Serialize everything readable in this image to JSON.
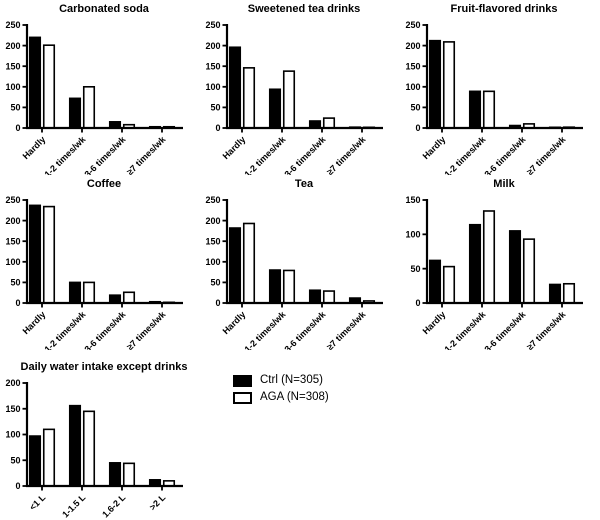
{
  "figure": {
    "background": "#ffffff",
    "axis_color": "#000000"
  },
  "legend": {
    "entries": [
      {
        "label": "Ctrl (N=305)",
        "fill": "#000000"
      },
      {
        "label": "AGA (N=308)",
        "fill": "#ffffff"
      }
    ]
  },
  "chart_data": [
    {
      "id": "carbonated-soda",
      "type": "bar",
      "title": "Carbonated soda",
      "categories": [
        "Hardly",
        "1-2 times/wk",
        "3-6 times/wk",
        "≥7 times/wk"
      ],
      "series": [
        {
          "name": "Ctrl (N=305)",
          "fill": "#000000",
          "values": [
            220,
            72,
            15,
            3
          ]
        },
        {
          "name": "AGA (N=308)",
          "fill": "#ffffff",
          "values": [
            201,
            100,
            8,
            3
          ]
        }
      ],
      "ylim": [
        0,
        250
      ],
      "yticks": [
        0,
        50,
        100,
        150,
        200,
        250
      ],
      "grid": false
    },
    {
      "id": "sweetened-tea-drinks",
      "type": "bar",
      "title": "Sweetened tea drinks",
      "categories": [
        "Hardly",
        "1-2 times/wk",
        "3-6 times/wk",
        "≥7 times/wk"
      ],
      "series": [
        {
          "name": "Ctrl (N=305)",
          "fill": "#000000",
          "values": [
            196,
            94,
            17,
            2
          ]
        },
        {
          "name": "AGA (N=308)",
          "fill": "#ffffff",
          "values": [
            146,
            138,
            24,
            1
          ]
        }
      ],
      "ylim": [
        0,
        250
      ],
      "yticks": [
        0,
        50,
        100,
        150,
        200,
        250
      ],
      "grid": false
    },
    {
      "id": "fruit-flavored-drinks",
      "type": "bar",
      "title": "Fruit-flavored drinks",
      "categories": [
        "Hardly",
        "1-2 times/wk",
        "3-6 times/wk",
        "≥7 times/wk"
      ],
      "series": [
        {
          "name": "Ctrl (N=305)",
          "fill": "#000000",
          "values": [
            212,
            89,
            6,
            1
          ]
        },
        {
          "name": "AGA (N=308)",
          "fill": "#ffffff",
          "values": [
            209,
            89,
            10,
            2
          ]
        }
      ],
      "ylim": [
        0,
        250
      ],
      "yticks": [
        0,
        50,
        100,
        150,
        200,
        250
      ],
      "grid": false
    },
    {
      "id": "coffee",
      "type": "bar",
      "title": "Coffee",
      "categories": [
        "Hardly",
        "1-2 times/wk",
        "3-6 times/wk",
        "≥7 times/wk"
      ],
      "series": [
        {
          "name": "Ctrl (N=305)",
          "fill": "#000000",
          "values": [
            237,
            50,
            19,
            3
          ]
        },
        {
          "name": "AGA (N=308)",
          "fill": "#ffffff",
          "values": [
            234,
            50,
            26,
            1
          ]
        }
      ],
      "ylim": [
        0,
        250
      ],
      "yticks": [
        0,
        50,
        100,
        150,
        200,
        250
      ],
      "grid": false
    },
    {
      "id": "tea",
      "type": "bar",
      "title": "Tea",
      "categories": [
        "Hardly",
        "1-2 times/wk",
        "3-6 times/wk",
        "≥7 times/wk"
      ],
      "series": [
        {
          "name": "Ctrl (N=305)",
          "fill": "#000000",
          "values": [
            182,
            80,
            31,
            12
          ]
        },
        {
          "name": "AGA (N=308)",
          "fill": "#ffffff",
          "values": [
            193,
            79,
            29,
            5
          ]
        }
      ],
      "ylim": [
        0,
        250
      ],
      "yticks": [
        0,
        50,
        100,
        150,
        200,
        250
      ],
      "grid": false
    },
    {
      "id": "milk",
      "type": "bar",
      "title": "Milk",
      "categories": [
        "Hardly",
        "1-2 times/wk",
        "3-6 times/wk",
        "≥7 times/wk"
      ],
      "series": [
        {
          "name": "Ctrl (N=305)",
          "fill": "#000000",
          "values": [
            62,
            114,
            105,
            27
          ]
        },
        {
          "name": "AGA (N=308)",
          "fill": "#ffffff",
          "values": [
            53,
            134,
            93,
            28
          ]
        }
      ],
      "ylim": [
        0,
        150
      ],
      "yticks": [
        0,
        50,
        100,
        150
      ],
      "grid": false
    },
    {
      "id": "daily-water-intake",
      "type": "bar",
      "title": "Daily water intake except drinks",
      "categories": [
        "<1 L",
        "1-1.5 L",
        "1.6-2 L",
        ">2 L"
      ],
      "series": [
        {
          "name": "Ctrl (N=305)",
          "fill": "#000000",
          "values": [
            97,
            156,
            45,
            12
          ]
        },
        {
          "name": "AGA (N=308)",
          "fill": "#ffffff",
          "values": [
            110,
            145,
            44,
            10
          ]
        }
      ],
      "ylim": [
        0,
        200
      ],
      "yticks": [
        0,
        50,
        100,
        150,
        200
      ],
      "grid": false
    }
  ]
}
